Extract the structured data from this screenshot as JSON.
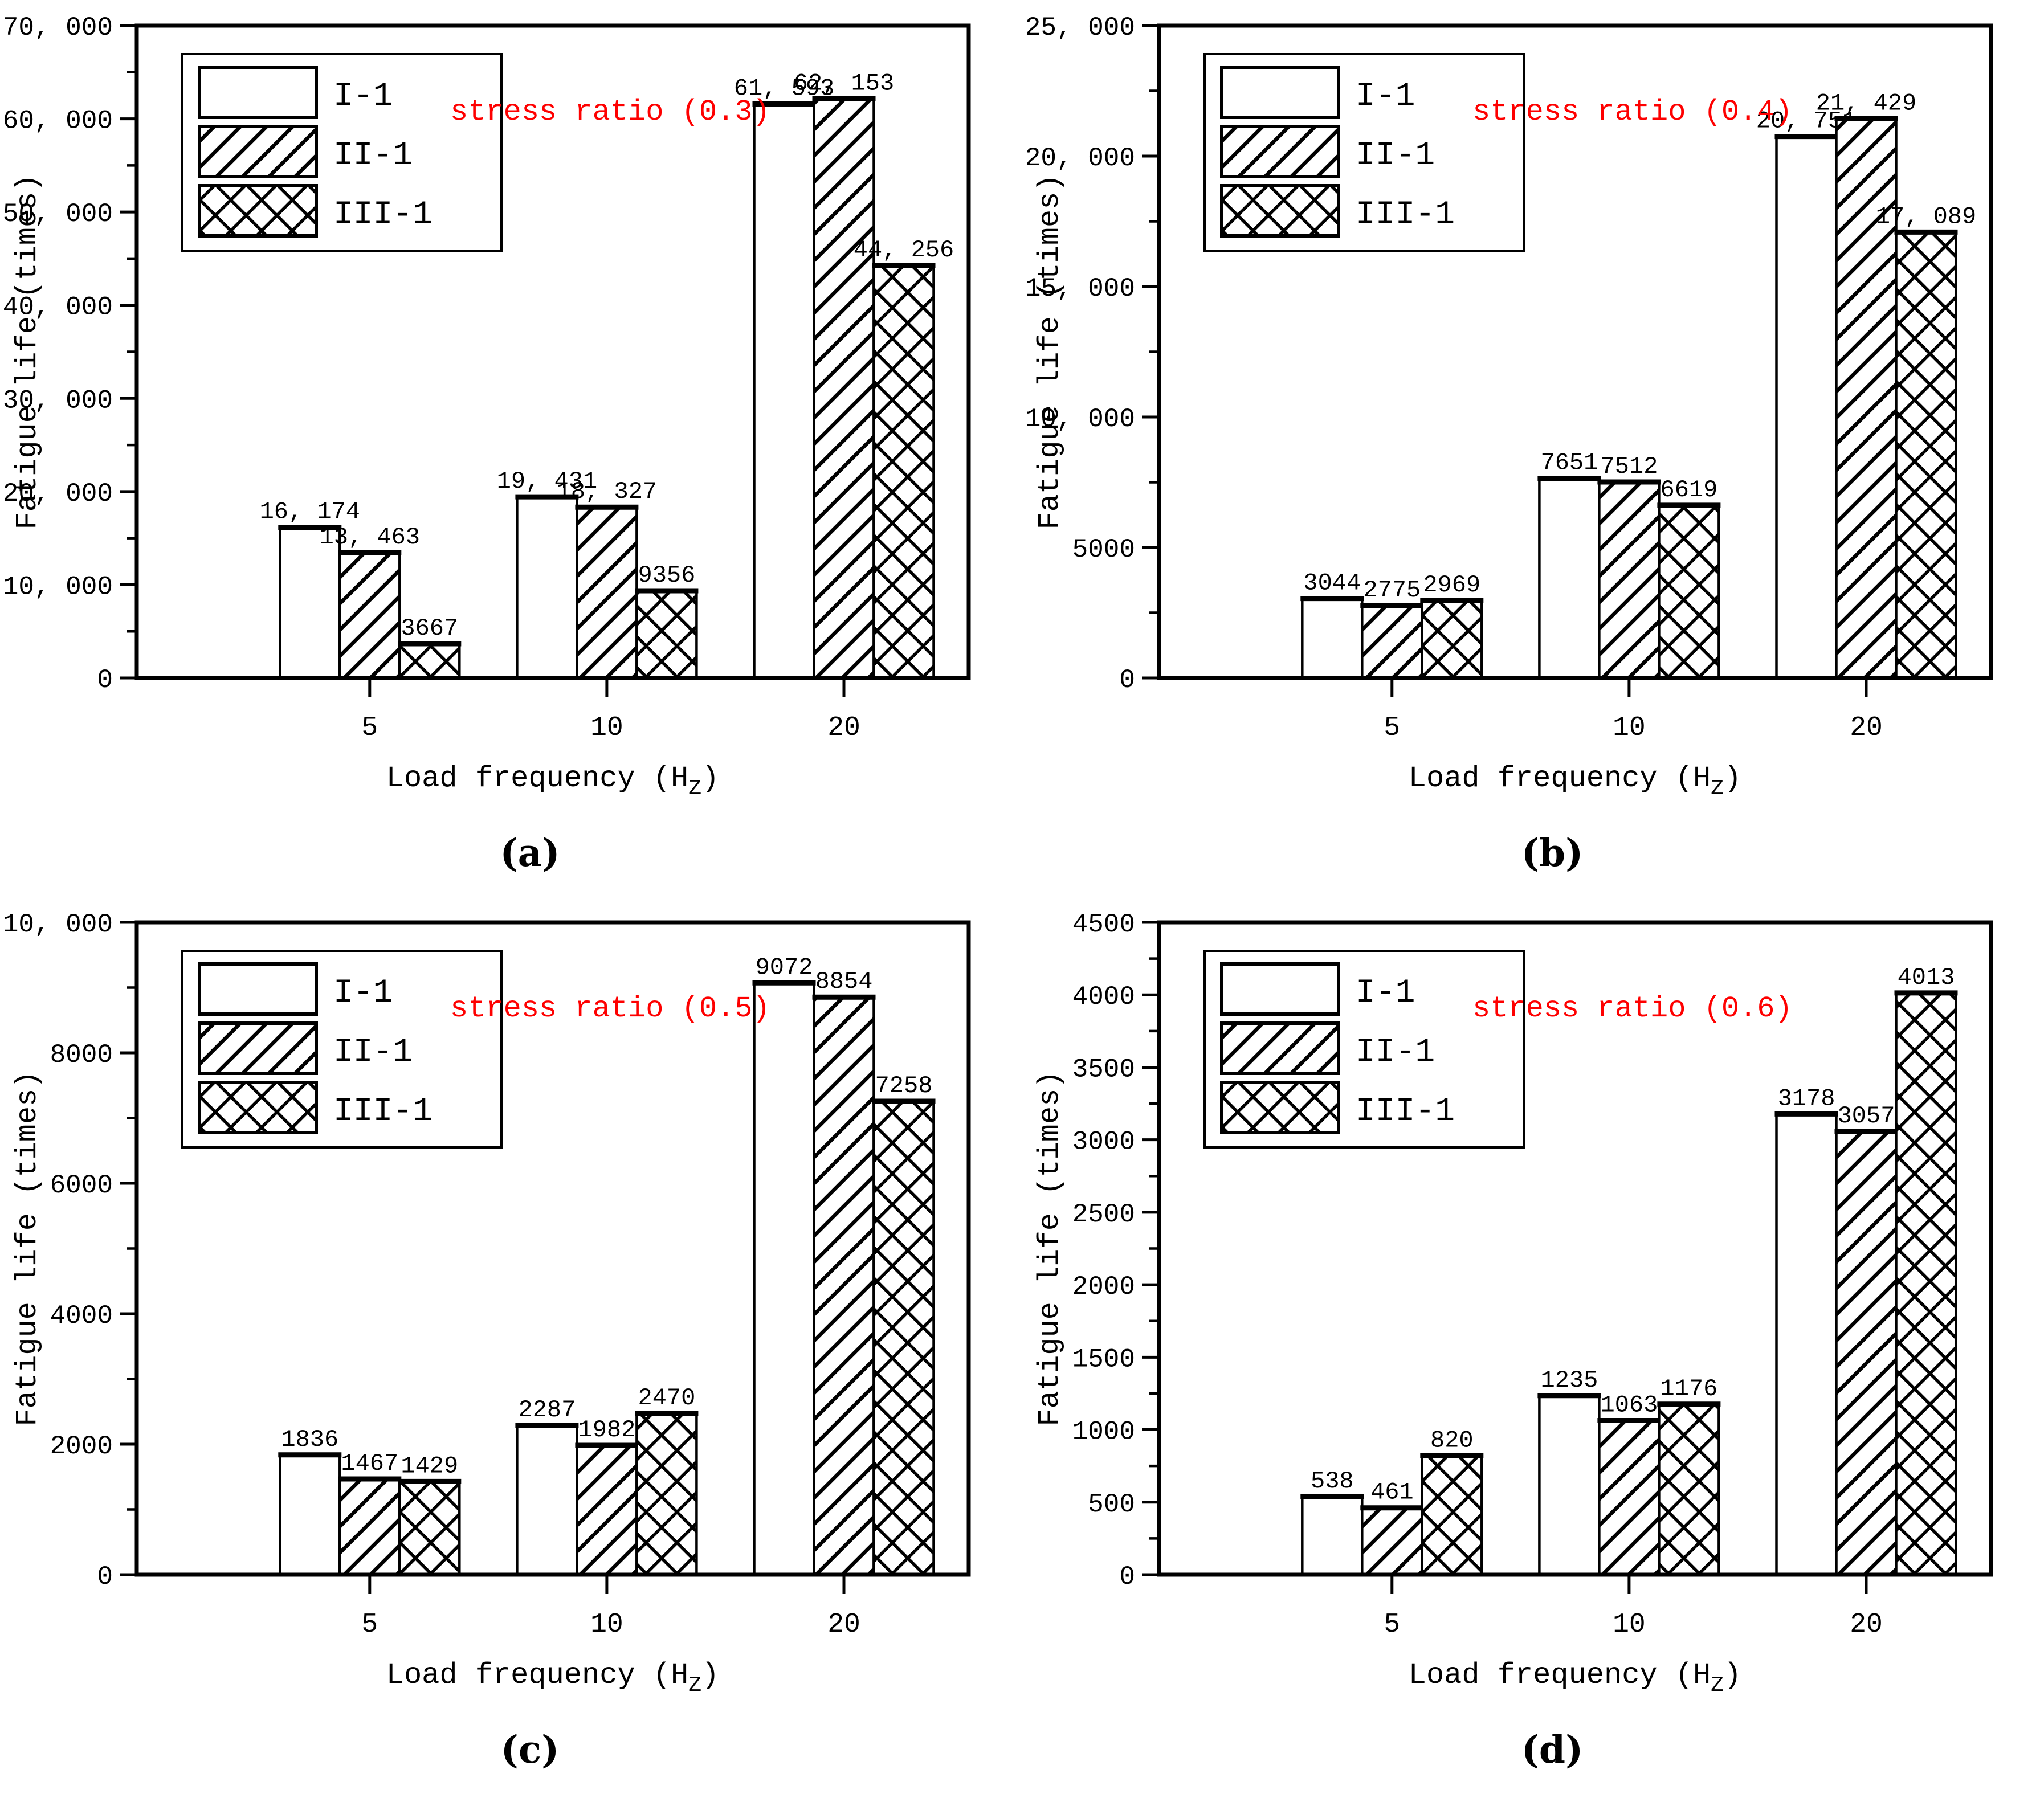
{
  "figure": {
    "ylabel": "Fatigue life (times)",
    "xlabel_prefix": "Load frequency (H",
    "xlabel_sub": "Z",
    "xlabel_suffix": ")",
    "panel_letters": [
      "(a)",
      "(b)",
      "(c)",
      "(d)"
    ],
    "legend": [
      {
        "label": "I-1",
        "pattern": "plain"
      },
      {
        "label": "II-1",
        "pattern": "diag"
      },
      {
        "label": "III-1",
        "pattern": "cross"
      }
    ],
    "colors": {
      "ink": "#000000",
      "annotation_red": "#fe0000",
      "background": "#ffffff"
    }
  },
  "chart_data": [
    {
      "panel": "a",
      "type": "bar",
      "annotation": "stress ratio (0.3)",
      "categories": [
        "5",
        "10",
        "20"
      ],
      "ylim": [
        0,
        70000
      ],
      "ytick_step": 10000,
      "minor_step": 5000,
      "ytick_labels": [
        "0",
        "10, 000",
        "20, 000",
        "30, 000",
        "40, 000",
        "50, 000",
        "60, 000",
        "70, 000"
      ],
      "series": [
        {
          "name": "I-1",
          "values": [
            16174,
            19431,
            61593
          ],
          "labels": [
            "16, 174",
            "19, 431",
            "61, 593"
          ]
        },
        {
          "name": "II-1",
          "values": [
            13463,
            18327,
            62153
          ],
          "labels": [
            "13, 463",
            "18, 327",
            "62, 153"
          ]
        },
        {
          "name": "III-1",
          "values": [
            3667,
            9356,
            44256
          ],
          "labels": [
            "3667",
            "9356",
            "44, 256"
          ]
        }
      ]
    },
    {
      "panel": "b",
      "type": "bar",
      "annotation": "stress ratio (0.4)",
      "categories": [
        "5",
        "10",
        "20"
      ],
      "ylim": [
        0,
        25000
      ],
      "ytick_step": 5000,
      "minor_step": 2500,
      "ytick_labels": [
        "0",
        "5000",
        "10, 000",
        "15, 000",
        "20, 000",
        "25, 000"
      ],
      "series": [
        {
          "name": "I-1",
          "values": [
            3044,
            7651,
            20751
          ],
          "labels": [
            "3044",
            "7651",
            "20, 751"
          ]
        },
        {
          "name": "II-1",
          "values": [
            2775,
            7512,
            21429
          ],
          "labels": [
            "2775",
            "7512",
            "21, 429"
          ]
        },
        {
          "name": "III-1",
          "values": [
            2969,
            6619,
            17089
          ],
          "labels": [
            "2969",
            "6619",
            "17, 089"
          ]
        }
      ]
    },
    {
      "panel": "c",
      "type": "bar",
      "annotation": "stress ratio (0.5)",
      "categories": [
        "5",
        "10",
        "20"
      ],
      "ylim": [
        0,
        10000
      ],
      "ytick_step": 2000,
      "minor_step": 1000,
      "ytick_labels": [
        "0",
        "2000",
        "4000",
        "6000",
        "8000",
        "10, 000"
      ],
      "series": [
        {
          "name": "I-1",
          "values": [
            1836,
            2287,
            9072
          ],
          "labels": [
            "1836",
            "2287",
            "9072"
          ]
        },
        {
          "name": "II-1",
          "values": [
            1467,
            1982,
            8854
          ],
          "labels": [
            "1467",
            "1982",
            "8854"
          ]
        },
        {
          "name": "III-1",
          "values": [
            1429,
            2470,
            7258
          ],
          "labels": [
            "1429",
            "2470",
            "7258"
          ]
        }
      ]
    },
    {
      "panel": "d",
      "type": "bar",
      "annotation": "stress ratio (0.6)",
      "categories": [
        "5",
        "10",
        "20"
      ],
      "ylim": [
        0,
        4500
      ],
      "ytick_step": 500,
      "minor_step": 250,
      "ytick_labels": [
        "0",
        "500",
        "1000",
        "1500",
        "2000",
        "2500",
        "3000",
        "3500",
        "4000",
        "4500"
      ],
      "series": [
        {
          "name": "I-1",
          "values": [
            538,
            1235,
            3178
          ],
          "labels": [
            "538",
            "1235",
            "3178"
          ]
        },
        {
          "name": "II-1",
          "values": [
            461,
            1063,
            3057
          ],
          "labels": [
            "461",
            "1063",
            "3057"
          ]
        },
        {
          "name": "III-1",
          "values": [
            820,
            1176,
            4013
          ],
          "labels": [
            "820",
            "1176",
            "4013"
          ]
        }
      ]
    }
  ]
}
